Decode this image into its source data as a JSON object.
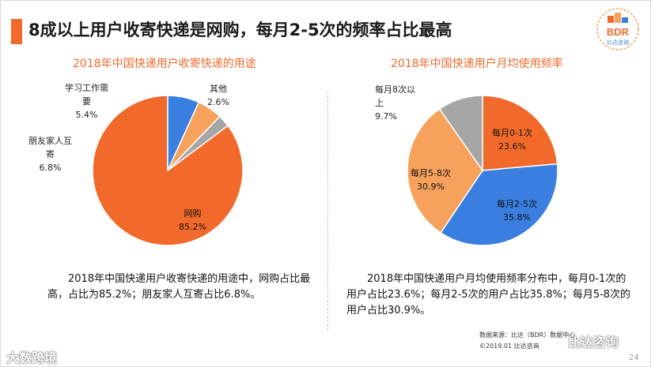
{
  "header": {
    "title": "8成以上用户收寄快递是网购，每月2-5次的频率占比最高",
    "logo_text": "BDR",
    "logo_sub": "比达咨询"
  },
  "colors": {
    "accent": "#f26a2b",
    "orange": "#f26a2b",
    "blue": "#3a7fe0",
    "light_orange": "#f6a15c",
    "gray": "#a6a6a6"
  },
  "chart_data": [
    {
      "type": "pie",
      "title": "2018年中国快递用户收寄快递的用途",
      "slices": [
        {
          "name": "网购",
          "value": 85.2,
          "label": "85.2%",
          "color": "#f26a2b"
        },
        {
          "name": "朋友家人互寄",
          "value": 6.8,
          "label": "6.8%",
          "color": "#3a7fe0"
        },
        {
          "name": "学习工作需要",
          "value": 5.4,
          "label": "5.4%",
          "color": "#f6a15c"
        },
        {
          "name": "其他",
          "value": 2.6,
          "label": "2.6%",
          "color": "#a6a6a6"
        }
      ],
      "description": "2018年中国快递用户收寄快递的用途中，网购占比最高，占比为85.2%；朋友家人互寄占比6.8%。"
    },
    {
      "type": "pie",
      "title": "2018年中国快递用户月均使用频率",
      "slices": [
        {
          "name": "每月0-1次",
          "value": 23.6,
          "label": "23.6%",
          "color": "#f26a2b"
        },
        {
          "name": "每月2-5次",
          "value": 35.8,
          "label": "35.8%",
          "color": "#3a7fe0"
        },
        {
          "name": "每月5-8次",
          "value": 30.9,
          "label": "30.9%",
          "color": "#f6a15c"
        },
        {
          "name": "每月8次以上",
          "value": 9.7,
          "label": "9.7%",
          "color": "#a6a6a6"
        }
      ],
      "description": "2018年中国快递用户月均使用频率分布中，每月0-1次的用户占比23.6%；每月2-5次的用户占比35.8%；每月5-8次的用户占比30.9%。"
    }
  ],
  "labels": {
    "left_online": "网购",
    "left_online_pct": "85.2%",
    "left_friends_1": "朋友家人互",
    "left_friends_2": "寄",
    "left_friends_pct": "6.8%",
    "left_study_1": "学习工作需",
    "left_study_2": "要",
    "left_study_pct": "5.4%",
    "left_other": "其他",
    "left_other_pct": "2.6%",
    "right_01": "每月0-1次",
    "right_01_pct": "23.6%",
    "right_25": "每月2-5次",
    "right_25_pct": "35.8%",
    "right_58": "每月5-8次",
    "right_58_pct": "30.9%",
    "right_8_1": "每月8次以",
    "right_8_2": "上",
    "right_8_pct": "9.7%"
  },
  "footer": {
    "source_line1": "数据来源：比达（BDR）数据中心",
    "source_line2": "©2019.01   比达咨询",
    "page_number": "24",
    "watermark_left": "大数跨境",
    "watermark_right": "比达咨询"
  }
}
